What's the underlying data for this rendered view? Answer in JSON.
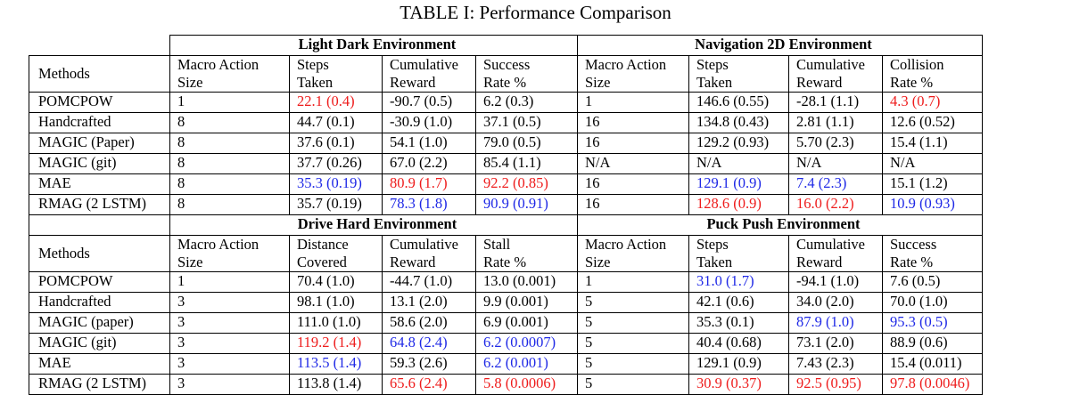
{
  "caption": "TABLE I: Performance Comparison",
  "colors": {
    "red": "#ee1c1c",
    "blue": "#1f29e6"
  },
  "sections": [
    {
      "env_left": "Light Dark Environment",
      "env_right": "Navigation 2D Environment",
      "methods_header": "Methods",
      "headers": [
        [
          "Macro Action",
          "Size"
        ],
        [
          "Steps",
          "Taken"
        ],
        [
          "Cumulative",
          "Reward"
        ],
        [
          "Success",
          "Rate %"
        ],
        [
          "Macro Action",
          "Size"
        ],
        [
          "Steps",
          "Taken"
        ],
        [
          "Cumulative",
          "Reward"
        ],
        [
          "Collision",
          "Rate %"
        ]
      ],
      "rows": [
        {
          "method": "POMCPOW",
          "cells": [
            {
              "v": "1"
            },
            {
              "v": "22.1 (0.4)",
              "c": "red"
            },
            {
              "v": "-90.7 (0.5)"
            },
            {
              "v": "6.2 (0.3)"
            },
            {
              "v": "1"
            },
            {
              "v": "146.6 (0.55)"
            },
            {
              "v": "-28.1 (1.1)"
            },
            {
              "v": "4.3 (0.7)",
              "c": "red"
            }
          ]
        },
        {
          "method": "Handcrafted",
          "cells": [
            {
              "v": "8"
            },
            {
              "v": "44.7 (0.1)"
            },
            {
              "v": "-30.9 (1.0)"
            },
            {
              "v": "37.1 (0.5)"
            },
            {
              "v": "16"
            },
            {
              "v": "134.8 (0.43)"
            },
            {
              "v": "2.81 (1.1)"
            },
            {
              "v": "12.6 (0.52)"
            }
          ]
        },
        {
          "method": "MAGIC (Paper)",
          "cells": [
            {
              "v": "8"
            },
            {
              "v": "37.6 (0.1)"
            },
            {
              "v": "54.1 (1.0)"
            },
            {
              "v": "79.0 (0.5)"
            },
            {
              "v": "16"
            },
            {
              "v": "129.2 (0.93)"
            },
            {
              "v": "5.70 (2.3)"
            },
            {
              "v": "15.4 (1.1)"
            }
          ]
        },
        {
          "method": "MAGIC (git)",
          "cells": [
            {
              "v": "8"
            },
            {
              "v": "37.7 (0.26)"
            },
            {
              "v": "67.0 (2.2)"
            },
            {
              "v": "85.4 (1.1)"
            },
            {
              "v": "N/A"
            },
            {
              "v": "N/A"
            },
            {
              "v": "N/A"
            },
            {
              "v": "N/A"
            }
          ]
        },
        {
          "method": "MAE",
          "cells": [
            {
              "v": "8"
            },
            {
              "v": "35.3 (0.19)",
              "c": "blue"
            },
            {
              "v": "80.9 (1.7)",
              "c": "red"
            },
            {
              "v": "92.2 (0.85)",
              "c": "red"
            },
            {
              "v": "16"
            },
            {
              "v": "129.1 (0.9)",
              "c": "blue"
            },
            {
              "v": "7.4 (2.3)",
              "c": "blue"
            },
            {
              "v": "15.1 (1.2)"
            }
          ]
        },
        {
          "method": "RMAG (2 LSTM)",
          "cells": [
            {
              "v": "8"
            },
            {
              "v": "35.7 (0.19)"
            },
            {
              "v": "78.3 (1.8)",
              "c": "blue"
            },
            {
              "v": "90.9 (0.91)",
              "c": "blue"
            },
            {
              "v": "16"
            },
            {
              "v": "128.6 (0.9)",
              "c": "red"
            },
            {
              "v": "16.0 (2.2)",
              "c": "red"
            },
            {
              "v": "10.9 (0.93)",
              "c": "blue"
            }
          ]
        }
      ]
    },
    {
      "env_left": "Drive Hard Environment",
      "env_right": "Puck Push Environment",
      "methods_header": "Methods",
      "headers": [
        [
          "Macro Action",
          "Size"
        ],
        [
          "Distance",
          "Covered"
        ],
        [
          "Cumulative",
          "Reward"
        ],
        [
          "Stall",
          "Rate %"
        ],
        [
          "Macro Action",
          "Size"
        ],
        [
          "Steps",
          "Taken"
        ],
        [
          "Cumulative",
          "Reward"
        ],
        [
          "Success",
          "Rate %"
        ]
      ],
      "rows": [
        {
          "method": "POMCPOW",
          "cells": [
            {
              "v": "1"
            },
            {
              "v": "70.4 (1.0)"
            },
            {
              "v": "-44.7 (1.0)"
            },
            {
              "v": "13.0 (0.001)"
            },
            {
              "v": "1"
            },
            {
              "v": "31.0 (1.7)",
              "c": "blue"
            },
            {
              "v": "-94.1 (1.0)"
            },
            {
              "v": "7.6 (0.5)"
            }
          ]
        },
        {
          "method": "Handcrafted",
          "cells": [
            {
              "v": "3"
            },
            {
              "v": "98.1 (1.0)"
            },
            {
              "v": "13.1 (2.0)"
            },
            {
              "v": "9.9 (0.001)"
            },
            {
              "v": "5"
            },
            {
              "v": "42.1 (0.6)"
            },
            {
              "v": "34.0 (2.0)"
            },
            {
              "v": "70.0 (1.0)"
            }
          ]
        },
        {
          "method": "MAGIC (paper)",
          "cells": [
            {
              "v": "3"
            },
            {
              "v": "111.0 (1.0)"
            },
            {
              "v": "58.6 (2.0)"
            },
            {
              "v": "6.9 (0.001)"
            },
            {
              "v": "5"
            },
            {
              "v": "35.3 (0.1)"
            },
            {
              "v": "87.9 (1.0)",
              "c": "blue"
            },
            {
              "v": "95.3 (0.5)",
              "c": "blue"
            }
          ]
        },
        {
          "method": "MAGIC (git)",
          "cells": [
            {
              "v": "3"
            },
            {
              "v": "119.2 (1.4)",
              "c": "red"
            },
            {
              "v": "64.8 (2.4)",
              "c": "blue"
            },
            {
              "v": "6.2 (0.0007)",
              "c": "blue"
            },
            {
              "v": "5"
            },
            {
              "v": "40.4 (0.68)"
            },
            {
              "v": "73.1 (2.0)"
            },
            {
              "v": "88.9 (0.6)"
            }
          ]
        },
        {
          "method": "MAE",
          "cells": [
            {
              "v": "3"
            },
            {
              "v": "113.5 (1.4)",
              "c": "blue"
            },
            {
              "v": "59.3 (2.6)"
            },
            {
              "v": "6.2 (0.001)",
              "c": "blue"
            },
            {
              "v": "5"
            },
            {
              "v": "129.1 (0.9)"
            },
            {
              "v": "7.43 (2.3)"
            },
            {
              "v": "15.4 (0.011)"
            }
          ]
        },
        {
          "method": "RMAG (2 LSTM)",
          "cells": [
            {
              "v": "3"
            },
            {
              "v": "113.8 (1.4)"
            },
            {
              "v": "65.6 (2.4)",
              "c": "red"
            },
            {
              "v": "5.8 (0.0006)",
              "c": "red"
            },
            {
              "v": "5"
            },
            {
              "v": "30.9 (0.37)",
              "c": "red"
            },
            {
              "v": "92.5 (0.95)",
              "c": "red"
            },
            {
              "v": "97.8 (0.0046)",
              "c": "red"
            }
          ]
        }
      ]
    }
  ]
}
